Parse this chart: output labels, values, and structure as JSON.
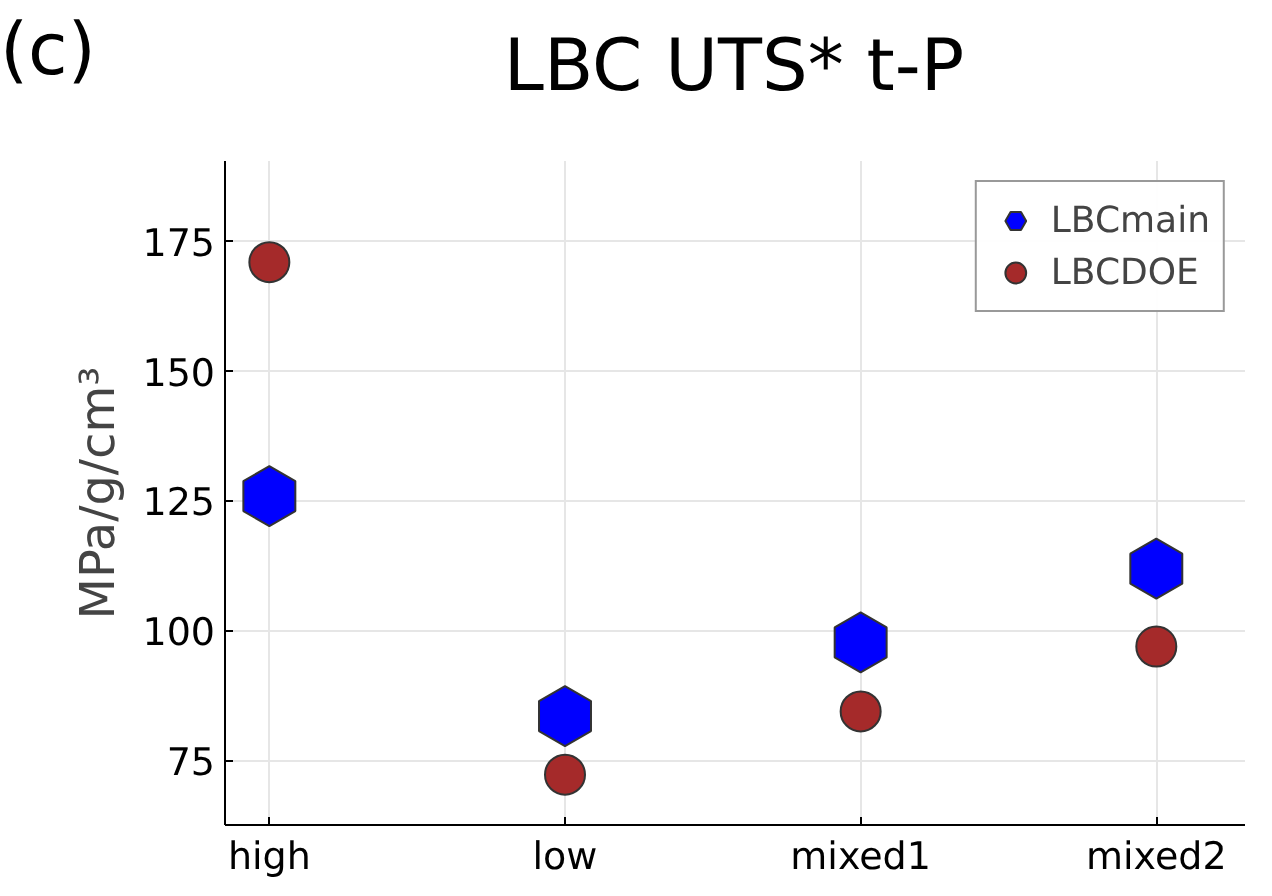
{
  "chart_data": {
    "type": "scatter",
    "title": "LBC UTS* t-P",
    "ylabel": "MPa/g/cm³",
    "annotations": [
      "(c)"
    ],
    "categories": [
      "high",
      "low",
      "mixed1",
      "mixed2"
    ],
    "series": [
      {
        "name": "LBCmain",
        "color": "#0000ff",
        "values": [
          126,
          83.6,
          97.8,
          112
        ]
      },
      {
        "name": "LBCDOE",
        "color": "#a52a2a",
        "marker": "circle",
        "values": [
          171.1,
          72.3,
          84.5,
          97.0
        ]
      }
    ],
    "ylim": [
      62.6,
      190.6
    ],
    "yticks": [
      75,
      100,
      125,
      150,
      175
    ],
    "grid": true,
    "legend": "top right"
  }
}
